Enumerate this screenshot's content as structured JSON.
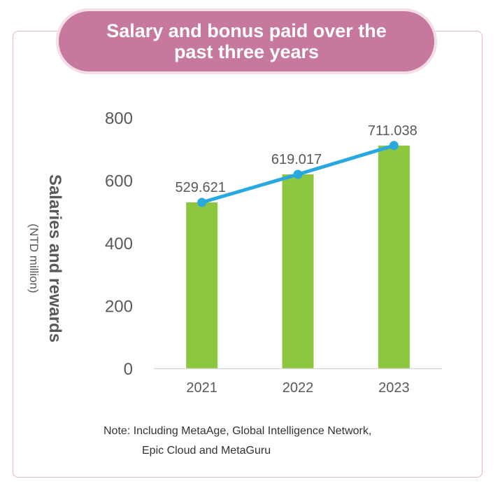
{
  "title_lines": [
    "Salary and bonus paid over the",
    "past three years"
  ],
  "ylabel": "Salaries and rewards",
  "ylabel_unit": "(NTD million)",
  "note_lines": [
    "Note: Including MetaAge, Global Intelligence Network,",
    "Epic Cloud and MetaGuru"
  ],
  "colors": {
    "bar": "#8dc63f",
    "line": "#29a8e0",
    "title_bg": "#c6789d",
    "frame_border": "#e6b8c8"
  },
  "chart_data": {
    "type": "bar",
    "categories": [
      "2021",
      "2022",
      "2023"
    ],
    "series": [
      {
        "type": "bar",
        "values": [
          529.621,
          619.017,
          711.038
        ]
      },
      {
        "type": "line",
        "values": [
          529.621,
          619.017,
          711.038
        ]
      }
    ],
    "data_labels": [
      "529.621",
      "619.017",
      "711.038"
    ],
    "yticks": [
      "0",
      "200",
      "400",
      "600",
      "800"
    ],
    "ylim": [
      0,
      800
    ],
    "grid": false
  }
}
